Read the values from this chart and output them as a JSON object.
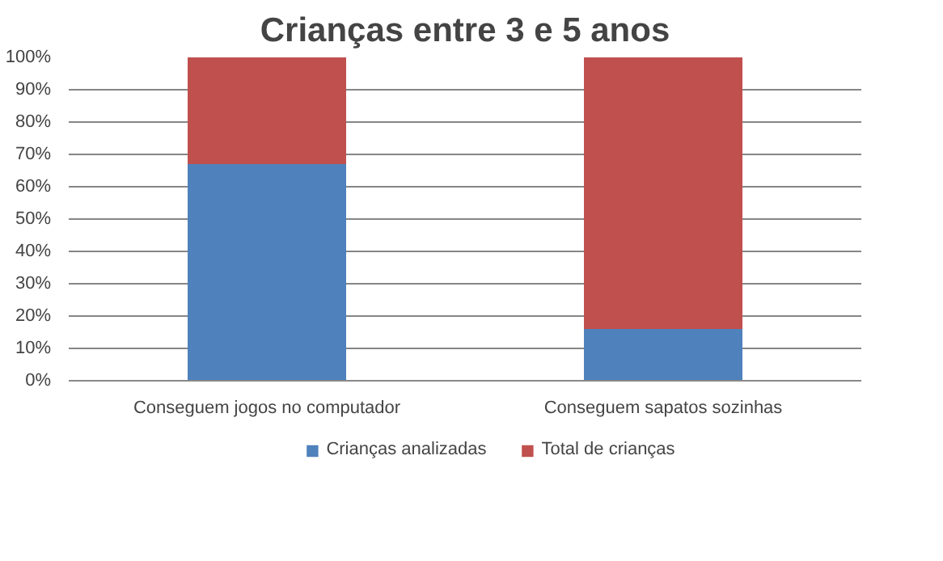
{
  "chart_data": {
    "type": "bar",
    "title": "Crianças entre 3 e 5 anos",
    "stacked": true,
    "categories": [
      "Conseguem jogos no computador",
      "Conseguem sapatos sozinhas"
    ],
    "series": [
      {
        "name": "Crianças analizadas",
        "color": "#4f81bd",
        "values": [
          67,
          16
        ]
      },
      {
        "name": "Total de crianças",
        "color": "#c0504d",
        "values": [
          33,
          84
        ]
      }
    ],
    "ylim": [
      0,
      100
    ],
    "yticks": [
      {
        "value": 0,
        "label": "0%"
      },
      {
        "value": 10,
        "label": "10%"
      },
      {
        "value": 20,
        "label": "20%"
      },
      {
        "value": 30,
        "label": "30%"
      },
      {
        "value": 40,
        "label": "40%"
      },
      {
        "value": 50,
        "label": "50%"
      },
      {
        "value": 60,
        "label": "60%"
      },
      {
        "value": 70,
        "label": "70%"
      },
      {
        "value": 80,
        "label": "80%"
      },
      {
        "value": 90,
        "label": "90%"
      },
      {
        "value": 100,
        "label": "100%"
      }
    ],
    "grid": "y",
    "legend": "bottom"
  }
}
